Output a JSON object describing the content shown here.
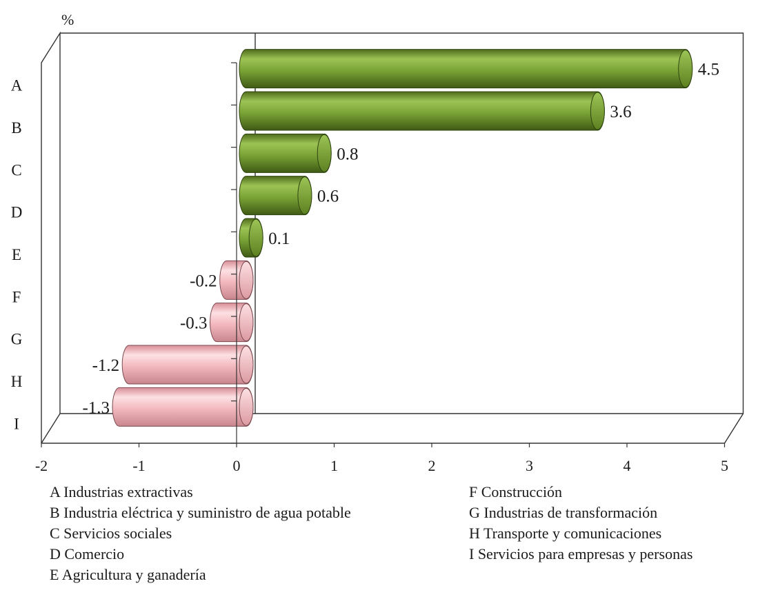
{
  "chart_data": {
    "type": "bar",
    "orientation": "horizontal",
    "ylabel": "%",
    "categories": [
      "A",
      "B",
      "C",
      "D",
      "E",
      "F",
      "G",
      "H",
      "I"
    ],
    "values": [
      4.5,
      3.6,
      0.8,
      0.6,
      0.1,
      -0.2,
      -0.3,
      -1.2,
      -1.3
    ],
    "value_labels": [
      "4.5",
      "3.6",
      "0.8",
      "0.6",
      "0.1",
      "-0.2",
      "-0.3",
      "-1.2",
      "-1.3"
    ],
    "xlim": [
      -2,
      5
    ],
    "x_ticks": [
      "-2",
      "-1",
      "0",
      "1",
      "2",
      "3",
      "4",
      "5"
    ],
    "colors": {
      "positive": "#6b8e23",
      "negative": "#f2b8be"
    },
    "legend": {
      "left": [
        "A Industrias extractivas",
        "B Industria eléctrica y suministro de agua potable",
        "C Servicios sociales",
        "D Comercio",
        "E Agricultura y ganadería"
      ],
      "right": [
        "F Construcción",
        "G Industrias de transformación",
        "H Transporte y comunicaciones",
        "I Servicios para empresas y personas"
      ]
    }
  }
}
